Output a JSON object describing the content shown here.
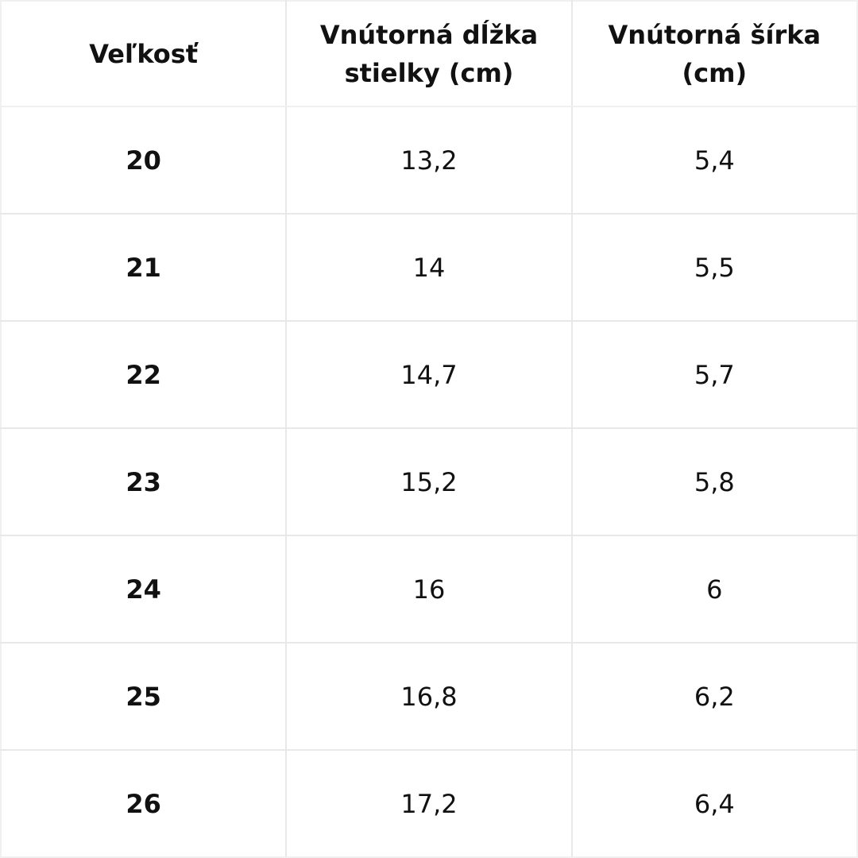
{
  "table": {
    "header": [
      "Veľkosť",
      "Vnútorná dĺžka stielky (cm)",
      "Vnútorná šírka (cm)"
    ],
    "rows": [
      [
        "20",
        "13,2",
        "5,4"
      ],
      [
        "21",
        "14",
        "5,5"
      ],
      [
        "22",
        "14,7",
        "5,7"
      ],
      [
        "23",
        "15,2",
        "5,8"
      ],
      [
        "24",
        "16",
        "6"
      ],
      [
        "25",
        "16,8",
        "6,2"
      ],
      [
        "26",
        "17,2",
        "6,4"
      ]
    ]
  }
}
